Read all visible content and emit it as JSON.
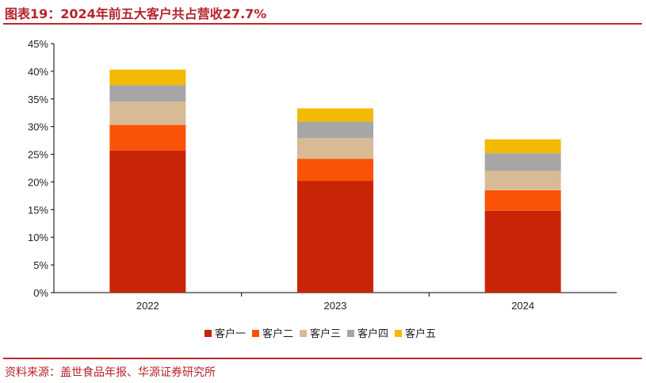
{
  "title": "图表19：2024年前五大客户共占营收27.7%",
  "source": "资料来源：盖世食品年报、华源证券研究所",
  "chart_data": {
    "type": "bar",
    "stacked": true,
    "categories": [
      "2022",
      "2023",
      "2024"
    ],
    "ylim": [
      0,
      45
    ],
    "yticks": [
      "0%",
      "5%",
      "10%",
      "15%",
      "20%",
      "25%",
      "30%",
      "35%",
      "40%",
      "45%"
    ],
    "legend_position": "bottom",
    "series": [
      {
        "name": "客户一",
        "values": [
          25.7,
          20.2,
          14.8
        ],
        "color": "#C82506"
      },
      {
        "name": "客户二",
        "values": [
          4.6,
          4.0,
          3.7
        ],
        "color": "#FA5207"
      },
      {
        "name": "客户三",
        "values": [
          4.2,
          3.7,
          3.5
        ],
        "color": "#D8BB94"
      },
      {
        "name": "客户四",
        "values": [
          3.0,
          3.0,
          3.2
        ],
        "color": "#A6A6A6"
      },
      {
        "name": "客户五",
        "values": [
          2.8,
          2.4,
          2.5
        ],
        "color": "#F2BA02"
      }
    ]
  }
}
